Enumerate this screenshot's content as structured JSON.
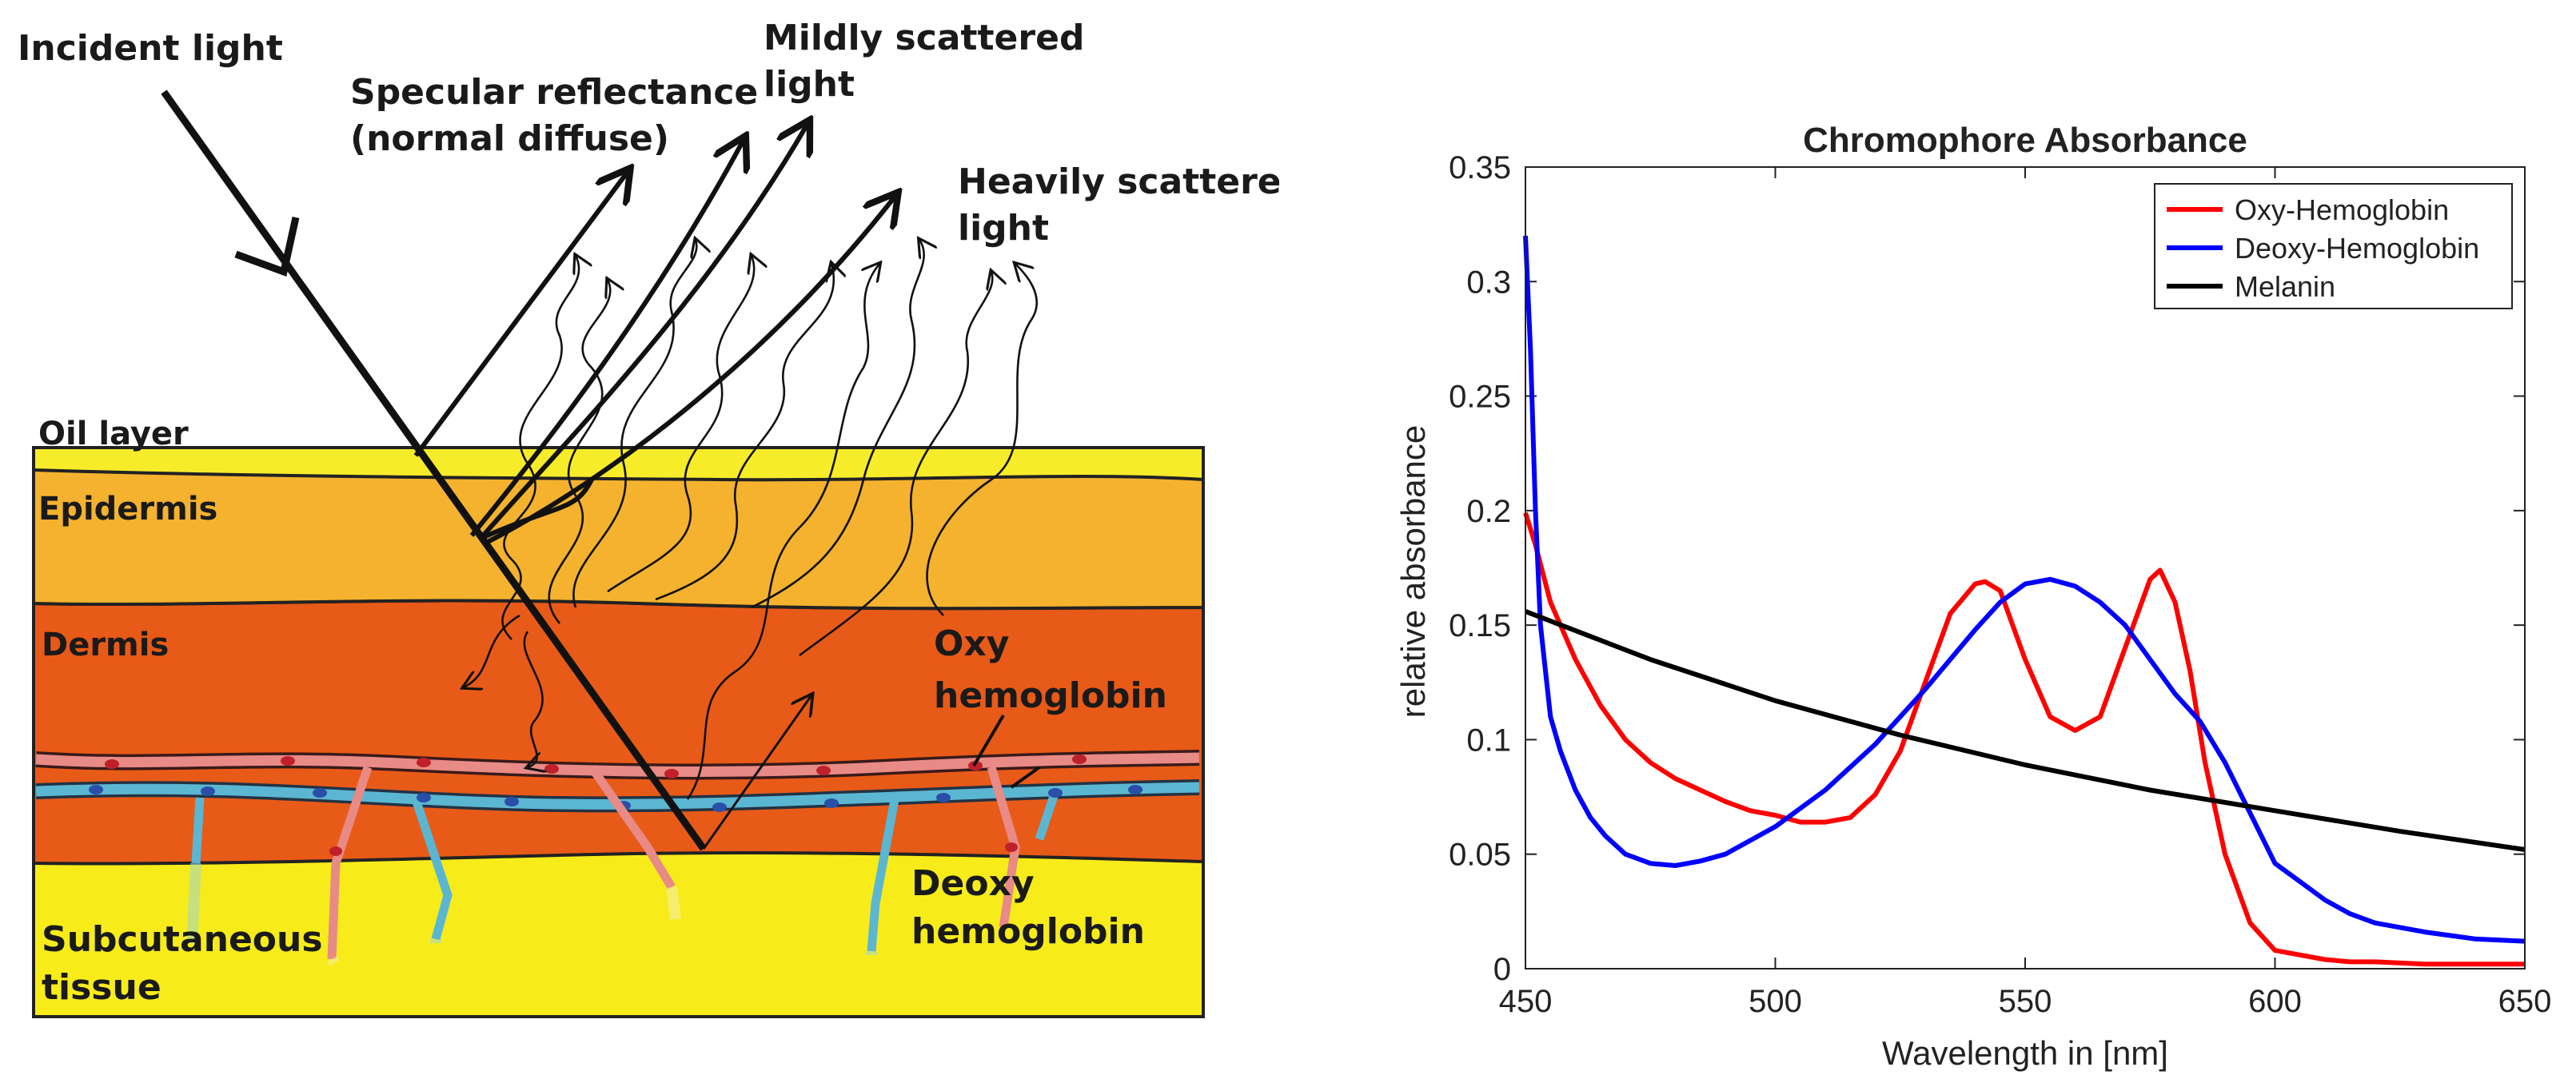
{
  "diagram": {
    "labels": {
      "incident": "Incident light",
      "specular_1": "Specular reflectance",
      "specular_2": "(normal diffuse)",
      "mild_1": "Mildly scattered",
      "mild_2": "light",
      "heavy_1": "Heavily scattered",
      "heavy_2": "light",
      "oil": "Oil layer",
      "epidermis": "Epidermis",
      "dermis": "Dermis",
      "oxy_1": "Oxy",
      "oxy_2": "hemoglobin",
      "deoxy_1": "Deoxy",
      "deoxy_2": "hemoglobin",
      "subq_1": "Subcutaneous",
      "subq_2": "tissue"
    },
    "colors": {
      "oil": "#f7ec2a",
      "epidermis": "#f4b22e",
      "dermis": "#e85a18",
      "subcutaneous": "#f7ec1a",
      "oxy_vessel": "#e88a86",
      "deoxy_vessel": "#5bb6d2"
    }
  },
  "chart_data": {
    "type": "line",
    "title": "Chromophore Absorbance",
    "xlabel": "Wavelength in [nm]",
    "ylabel": "relative absorbance",
    "xlim": [
      450,
      650
    ],
    "ylim": [
      0,
      0.35
    ],
    "xticks": [
      450,
      500,
      550,
      600,
      650
    ],
    "yticks": [
      0,
      0.05,
      0.1,
      0.15,
      0.2,
      0.25,
      0.3,
      0.35
    ],
    "ytick_labels": [
      "0",
      "0.05",
      "0.1",
      "0.15",
      "0.2",
      "0.25",
      "0.3",
      "0.35"
    ],
    "legend_position": "top-right",
    "series": [
      {
        "name": "Oxy-Hemoglobin",
        "color": "#ff0000",
        "x": [
          450,
          452,
          455,
          460,
          465,
          470,
          475,
          480,
          485,
          490,
          495,
          500,
          505,
          510,
          515,
          520,
          525,
          530,
          535,
          540,
          542,
          545,
          550,
          555,
          560,
          565,
          570,
          575,
          577,
          580,
          583,
          586,
          590,
          595,
          600,
          605,
          610,
          615,
          620,
          630,
          640,
          650
        ],
        "y": [
          0.199,
          0.185,
          0.16,
          0.135,
          0.115,
          0.1,
          0.09,
          0.083,
          0.078,
          0.073,
          0.069,
          0.067,
          0.064,
          0.064,
          0.066,
          0.076,
          0.095,
          0.125,
          0.155,
          0.168,
          0.169,
          0.165,
          0.135,
          0.11,
          0.104,
          0.11,
          0.14,
          0.17,
          0.174,
          0.16,
          0.13,
          0.09,
          0.05,
          0.02,
          0.008,
          0.006,
          0.004,
          0.003,
          0.003,
          0.002,
          0.002,
          0.002
        ]
      },
      {
        "name": "Deoxy-Hemoglobin",
        "color": "#0000ff",
        "x": [
          450,
          451,
          452,
          453,
          455,
          457,
          460,
          463,
          466,
          470,
          475,
          480,
          485,
          490,
          500,
          510,
          520,
          530,
          540,
          545,
          550,
          555,
          560,
          565,
          570,
          575,
          580,
          585,
          590,
          595,
          600,
          605,
          610,
          615,
          620,
          630,
          640,
          650
        ],
        "y": [
          0.32,
          0.27,
          0.2,
          0.15,
          0.11,
          0.095,
          0.078,
          0.066,
          0.058,
          0.05,
          0.046,
          0.045,
          0.047,
          0.05,
          0.062,
          0.078,
          0.098,
          0.122,
          0.148,
          0.16,
          0.168,
          0.17,
          0.167,
          0.16,
          0.15,
          0.135,
          0.12,
          0.108,
          0.09,
          0.068,
          0.046,
          0.038,
          0.03,
          0.024,
          0.02,
          0.016,
          0.013,
          0.012
        ]
      },
      {
        "name": "Melanin",
        "color": "#000000",
        "x": [
          450,
          475,
          500,
          525,
          550,
          575,
          600,
          625,
          650
        ],
        "y": [
          0.156,
          0.135,
          0.117,
          0.102,
          0.089,
          0.078,
          0.069,
          0.06,
          0.052
        ]
      }
    ]
  }
}
